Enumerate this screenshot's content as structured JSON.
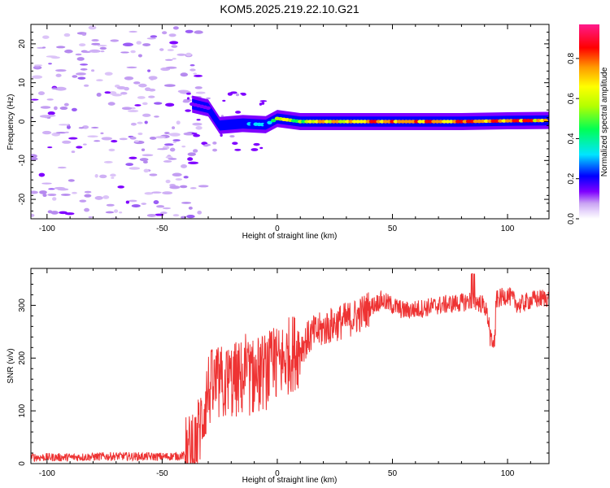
{
  "title": "KOM5.2025.219.22.10.G21",
  "chart_data": [
    {
      "type": "heatmap",
      "title": "KOM5.2025.219.22.10.G21",
      "xlabel": "Height of straight line (km)",
      "ylabel": "Frequency (Hz)",
      "xlim": [
        -107,
        118
      ],
      "ylim": [
        -25,
        25
      ],
      "x_ticks": [
        -100,
        -50,
        0,
        50,
        100
      ],
      "y_ticks": [
        -20,
        -10,
        0,
        10,
        20
      ],
      "colorbar": {
        "label": "Normalized spectral amplitude",
        "range": [
          0,
          0.97
        ],
        "ticks": [
          0.0,
          0.2,
          0.4,
          0.6,
          0.8
        ],
        "colors": [
          "#ffffff",
          "#d8b8f5",
          "#7f00ff",
          "#0000ff",
          "#00e0ff",
          "#00ff60",
          "#b0ff00",
          "#ffff00",
          "#ff9000",
          "#ff0000",
          "#ff0080"
        ]
      },
      "ridge": [
        {
          "x": -37,
          "freq": 4.5,
          "amp": 0.25
        },
        {
          "x": -30,
          "freq": 3.5,
          "amp": 0.28
        },
        {
          "x": -25,
          "freq": -1.0,
          "amp": 0.35
        },
        {
          "x": -15,
          "freq": -0.5,
          "amp": 0.4
        },
        {
          "x": -5,
          "freq": -0.8,
          "amp": 0.45
        },
        {
          "x": 0,
          "freq": 0.8,
          "amp": 0.7
        },
        {
          "x": 10,
          "freq": 0.0,
          "amp": 0.6
        },
        {
          "x": 20,
          "freq": 0.0,
          "amp": 0.75
        },
        {
          "x": 50,
          "freq": 0.0,
          "amp": 0.82
        },
        {
          "x": 80,
          "freq": 0.0,
          "amp": 0.85
        },
        {
          "x": 100,
          "freq": 0.2,
          "amp": 0.85
        },
        {
          "x": 118,
          "freq": 0.3,
          "amp": 0.8
        }
      ],
      "noise_region": {
        "x_range": [
          -107,
          -40
        ],
        "freq_range": [
          -25,
          25
        ],
        "amp": 0.15
      }
    },
    {
      "type": "line",
      "xlabel": "Height of straight line (km)",
      "ylabel": "SNR (v/v)",
      "xlim": [
        -107,
        118
      ],
      "ylim": [
        0,
        370
      ],
      "x_ticks": [
        -100,
        -50,
        0,
        50,
        100
      ],
      "y_ticks": [
        0,
        100,
        200,
        300
      ],
      "series": [
        {
          "name": "SNR",
          "color": "#ee3333",
          "x": [
            -107,
            -90,
            -70,
            -50,
            -40,
            -36,
            -33,
            -30,
            -25,
            -20,
            -17,
            -10,
            -5,
            0,
            5,
            10,
            15,
            20,
            25,
            30,
            35,
            40,
            45,
            50,
            55,
            60,
            70,
            80,
            85,
            90,
            93,
            95,
            100,
            105,
            110,
            118
          ],
          "values": [
            12,
            12,
            14,
            13,
            15,
            25,
            80,
            140,
            150,
            155,
            160,
            165,
            175,
            185,
            205,
            220,
            245,
            255,
            265,
            272,
            280,
            295,
            310,
            300,
            290,
            292,
            300,
            305,
            310,
            300,
            250,
            310,
            320,
            300,
            310,
            315
          ]
        }
      ]
    }
  ]
}
